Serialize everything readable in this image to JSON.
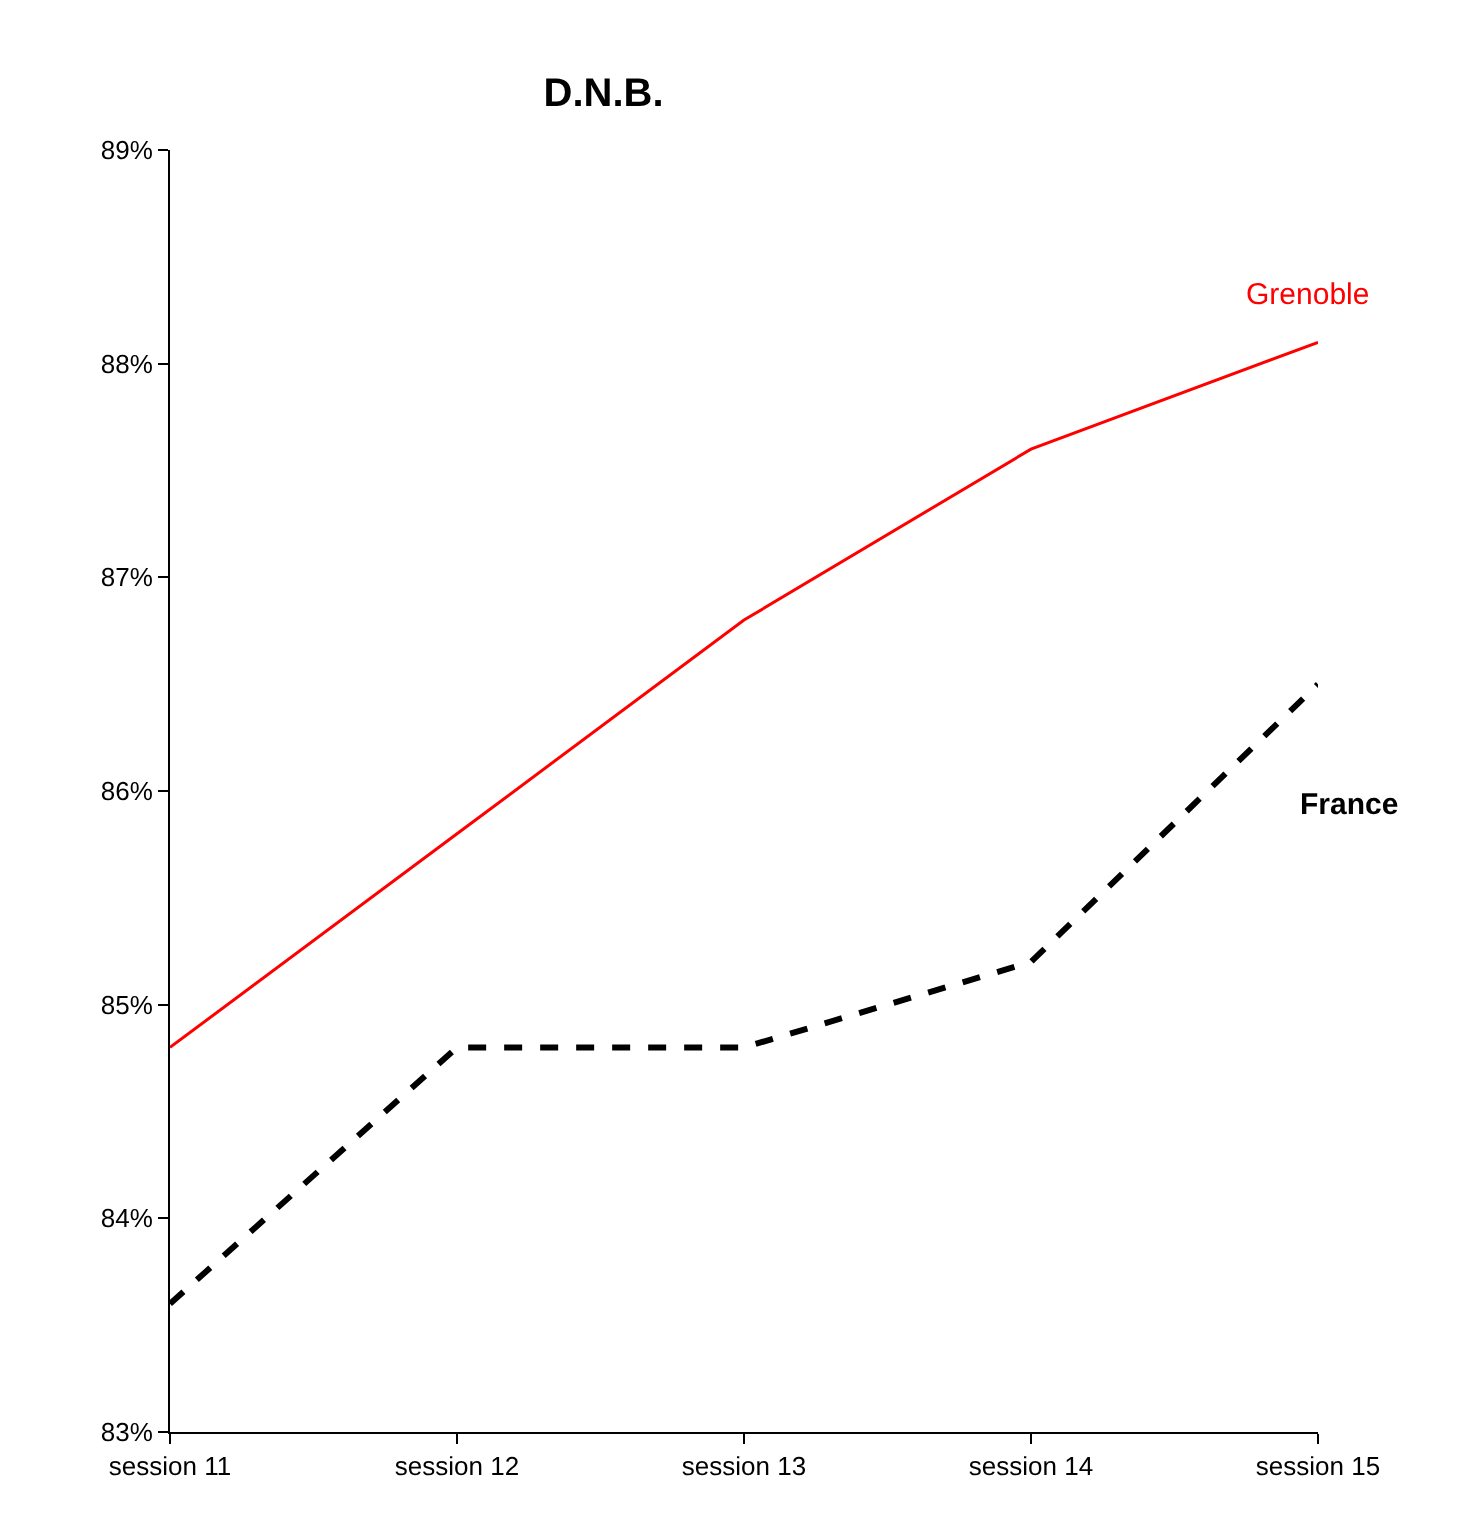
{
  "chart_data": {
    "type": "line",
    "title": "D.N.B.",
    "categories": [
      "session 11",
      "session 12",
      "session 13",
      "session 14",
      "session 15"
    ],
    "series": [
      {
        "name": "Grenoble",
        "color": "#ff0000",
        "line_style": "solid",
        "values": [
          84.8,
          85.8,
          86.8,
          87.6,
          88.1
        ]
      },
      {
        "name": "France",
        "color": "#000000",
        "line_style": "dashed",
        "values": [
          83.6,
          84.8,
          84.8,
          85.2,
          86.5
        ]
      }
    ],
    "ylim": [
      83,
      89
    ],
    "yticks": [
      {
        "value": 83,
        "label": "83%"
      },
      {
        "value": 84,
        "label": "84%"
      },
      {
        "value": 85,
        "label": "85%"
      },
      {
        "value": 86,
        "label": "86%"
      },
      {
        "value": 87,
        "label": "87%"
      },
      {
        "value": 88,
        "label": "88%"
      },
      {
        "value": 89,
        "label": "89%"
      }
    ],
    "legend": false,
    "marker": "none"
  }
}
